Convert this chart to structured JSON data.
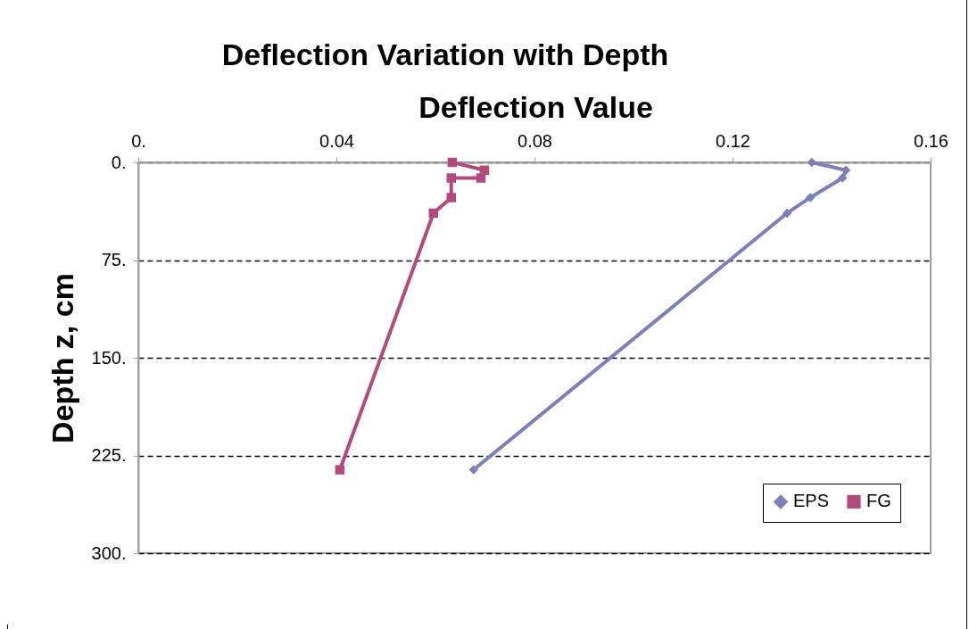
{
  "chart_data": {
    "type": "line",
    "title": "Deflection Variation with Depth",
    "xlabel": "Deflection Value",
    "ylabel": "Depth z, cm",
    "series": [
      {
        "name": "EPS",
        "color": "#7b80b8",
        "marker": "diamond",
        "x": [
          0.136,
          0.1429,
          0.1422,
          0.1357,
          0.131,
          0.0677
        ],
        "values": [
          0,
          6,
          12,
          27,
          39,
          236
        ]
      },
      {
        "name": "FG",
        "color": "#b24a7e",
        "marker": "square",
        "x": [
          0.0634,
          0.0699,
          0.0692,
          0.0632,
          0.0632,
          0.0596,
          0.0407
        ],
        "values": [
          0,
          6,
          12,
          12,
          27,
          39,
          236
        ]
      }
    ],
    "xlim": [
      0,
      0.16
    ],
    "xticks": [
      {
        "value": 0,
        "label": "0."
      },
      0.04,
      0.08,
      0.12,
      0.16
    ],
    "ylim": [
      300,
      0
    ],
    "yticks": [
      {
        "value": 0,
        "label": "0."
      },
      {
        "value": 75,
        "label": "75."
      },
      {
        "value": 150,
        "label": "150."
      },
      {
        "value": 225,
        "label": "225."
      },
      {
        "value": 300,
        "label": "300."
      }
    ],
    "grid": "y",
    "legend": "bottom right"
  }
}
